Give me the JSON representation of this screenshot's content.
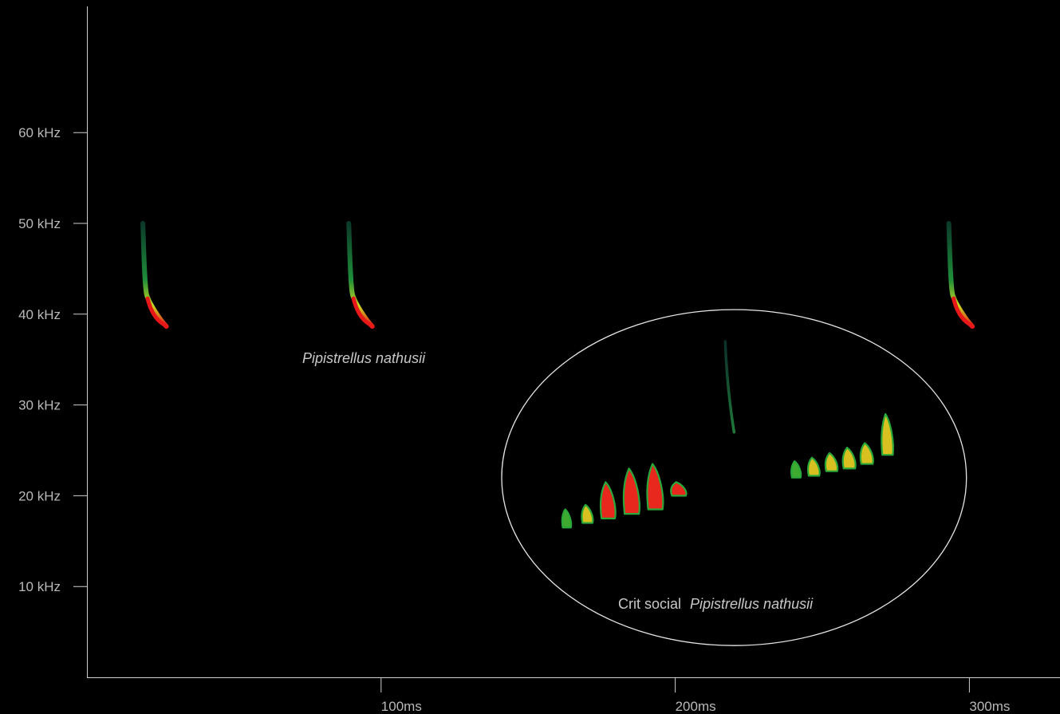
{
  "chart_data": {
    "type": "scatter",
    "title": "",
    "xlabel": "",
    "ylabel": "",
    "xlim": [
      0,
      340
    ],
    "ylim": [
      0,
      73
    ],
    "x_ticks": [
      100,
      200,
      300
    ],
    "x_tick_labels": [
      "100ms",
      "200ms",
      "300ms"
    ],
    "y_ticks": [
      10,
      20,
      30,
      40,
      50,
      60
    ],
    "y_tick_labels": [
      "10 kHz",
      "20 kHz",
      "30 kHz",
      "40 kHz",
      "50 kHz",
      "60 kHz"
    ],
    "grid": false,
    "legend": "none",
    "background": "#000000",
    "colormap": [
      "#0b3a2a",
      "#1f8f3a",
      "#c8d820",
      "#f0a020",
      "#e81818"
    ],
    "series": [
      {
        "calls": [
          {
            "shape": "echolocation",
            "t": 19,
            "f_start": 50,
            "f_end": 39,
            "duration_ms": 8
          },
          {
            "shape": "echolocation",
            "t": 89,
            "f_start": 50,
            "f_end": 39,
            "duration_ms": 8
          },
          {
            "shape": "echolocation",
            "t": 293,
            "f_start": 50,
            "f_end": 39,
            "duration_ms": 8
          }
        ]
      },
      {
        "calls": [
          {
            "shape": "syllable",
            "t": 163,
            "f_low": 16.5,
            "f_high": 18.5,
            "intensity": 0.35
          },
          {
            "shape": "syllable",
            "t": 170,
            "f_low": 17,
            "f_high": 19,
            "intensity": 0.55
          },
          {
            "shape": "syllable",
            "t": 177,
            "f_low": 17.5,
            "f_high": 21.5,
            "intensity": 0.9
          },
          {
            "shape": "syllable",
            "t": 185,
            "f_low": 18,
            "f_high": 23,
            "intensity": 1.0
          },
          {
            "shape": "syllable",
            "t": 193,
            "f_low": 18.5,
            "f_high": 23.5,
            "intensity": 1.0
          },
          {
            "shape": "syllable",
            "t": 201,
            "f_low": 20,
            "f_high": 21.5,
            "intensity": 0.95
          },
          {
            "shape": "sweep",
            "t": 217,
            "f_start": 37,
            "f_end": 27,
            "duration_ms": 3,
            "intensity": 0.2
          },
          {
            "shape": "syllable",
            "t": 241,
            "f_low": 22,
            "f_high": 23.8,
            "intensity": 0.4
          },
          {
            "shape": "syllable",
            "t": 247,
            "f_low": 22.2,
            "f_high": 24.2,
            "intensity": 0.6
          },
          {
            "shape": "syllable",
            "t": 253,
            "f_low": 22.7,
            "f_high": 24.7,
            "intensity": 0.65
          },
          {
            "shape": "syllable",
            "t": 259,
            "f_low": 23,
            "f_high": 25.3,
            "intensity": 0.7
          },
          {
            "shape": "syllable",
            "t": 265,
            "f_low": 23.5,
            "f_high": 25.8,
            "intensity": 0.7
          },
          {
            "shape": "syllable",
            "t": 272,
            "f_low": 24.5,
            "f_high": 29,
            "intensity": 0.6
          }
        ]
      }
    ],
    "annotations": {
      "echolocation_label": "Pipistrellus nathusii",
      "social_label_prefix": "Crit social",
      "social_label_species": "Pipistrellus nathusii"
    },
    "highlight": {
      "shape": "ellipse",
      "t_center": 220,
      "f_center": 22,
      "t_radius": 79,
      "f_radius": 18.5
    }
  }
}
